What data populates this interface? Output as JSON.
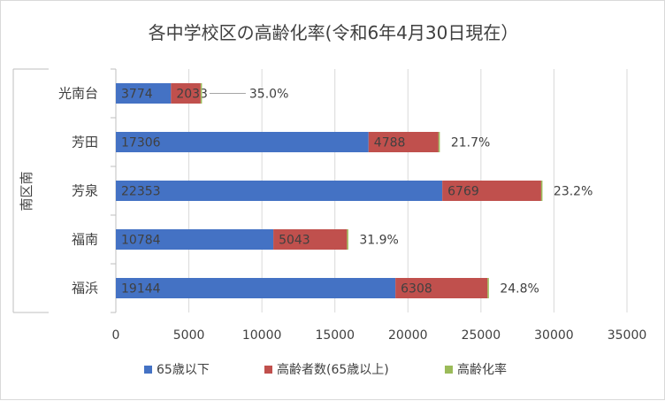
{
  "chart_data": {
    "type": "bar",
    "orientation": "horizontal",
    "stacked": true,
    "title": "各中学校区の高齢化率(令和6年4月30日現在）",
    "group_label": "南区南",
    "categories": [
      "光南台",
      "芳田",
      "芳泉",
      "福南",
      "福浜"
    ],
    "series": [
      {
        "name": "65歳以下",
        "values": [
          3774,
          17306,
          22353,
          10784,
          19144
        ],
        "color": "#4472c4"
      },
      {
        "name": "高齢者数(65歳以上)",
        "values": [
          2033,
          4788,
          6769,
          5043,
          6308
        ],
        "color": "#c0504d"
      },
      {
        "name": "高齢化率",
        "values": [
          "35.0%",
          "21.7%",
          "23.2%",
          "31.9%",
          "24.8%"
        ],
        "color": "#9bbb59"
      }
    ],
    "xlim": [
      0,
      35000
    ],
    "xticks": [
      "0",
      "5000",
      "10000",
      "15000",
      "20000",
      "25000",
      "30000",
      "35000"
    ],
    "grid": "vertical",
    "legend_position": "bottom"
  }
}
